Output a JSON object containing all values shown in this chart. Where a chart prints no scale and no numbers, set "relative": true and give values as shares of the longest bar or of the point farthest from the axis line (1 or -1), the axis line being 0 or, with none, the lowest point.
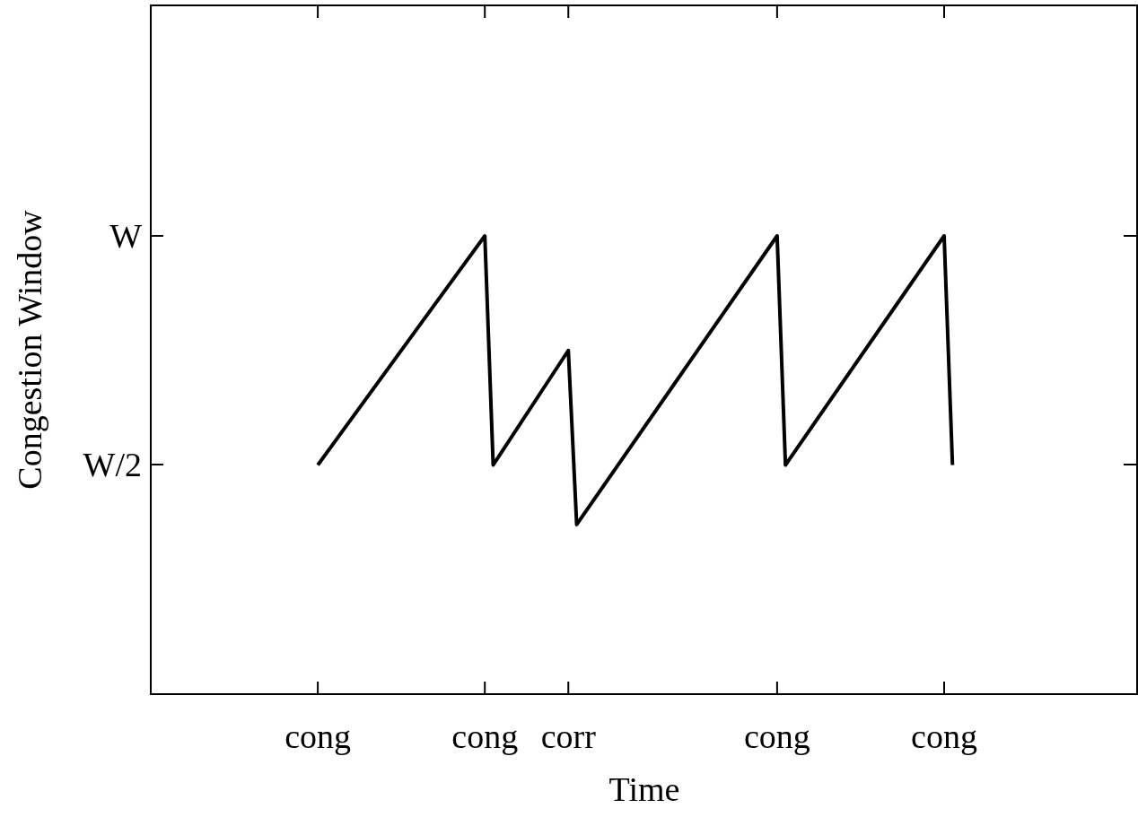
{
  "chart_data": {
    "type": "line",
    "xlabel": "Time",
    "ylabel": "Congestion Window",
    "relative": true,
    "categories": [
      null,
      null,
      null,
      null,
      null,
      null,
      null,
      null,
      null,
      null,
      null,
      null,
      null,
      null,
      null,
      null,
      null,
      null,
      null,
      null,
      "cong",
      null,
      null,
      null,
      null,
      null,
      null,
      null,
      null,
      null,
      null,
      null,
      null,
      null,
      null,
      null,
      null,
      null,
      null,
      null,
      "cong",
      null,
      null,
      null,
      null,
      null,
      null,
      null,
      null,
      null,
      "corr",
      null,
      null,
      null,
      null,
      null,
      null,
      null,
      null,
      null,
      null,
      null,
      null,
      null,
      null,
      null,
      null,
      null,
      null,
      null,
      null,
      null,
      null,
      null,
      null,
      "cong",
      null,
      null,
      null,
      null,
      null,
      null,
      null,
      null,
      null,
      null,
      null,
      null,
      null,
      null,
      null,
      null,
      null,
      null,
      null,
      "cong",
      null,
      null,
      null,
      null,
      null,
      null,
      null,
      null,
      null,
      null,
      null,
      null,
      null,
      null,
      null,
      null,
      null,
      null,
      null,
      null,
      null,
      null,
      null
    ],
    "annotations": [
      "W/2",
      "W"
    ],
    "series": [
      {
        "color": "#000000",
        "values": [
          null,
          null,
          null,
          null,
          null,
          null,
          null,
          null,
          null,
          null,
          null,
          null,
          null,
          null,
          null,
          null,
          null,
          null,
          null,
          null,
          0.5,
          null,
          null,
          null,
          null,
          null,
          null,
          null,
          null,
          null,
          null,
          null,
          null,
          null,
          null,
          null,
          null,
          null,
          null,
          null,
          1,
          0.5,
          null,
          null,
          null,
          null,
          null,
          null,
          null,
          null,
          0.75,
          0.37,
          null,
          null,
          null,
          null,
          null,
          null,
          null,
          null,
          null,
          null,
          null,
          null,
          null,
          null,
          null,
          null,
          null,
          null,
          null,
          null,
          null,
          null,
          null,
          1,
          0.5,
          null,
          null,
          null,
          null,
          null,
          null,
          null,
          null,
          null,
          null,
          null,
          null,
          null,
          null,
          null,
          null,
          null,
          null,
          1,
          0.5,
          null,
          null,
          null,
          null,
          null,
          null,
          null,
          null,
          null,
          null,
          null,
          null,
          null,
          null,
          null,
          null,
          null,
          null,
          null,
          null,
          null,
          null
        ]
      }
    ]
  }
}
